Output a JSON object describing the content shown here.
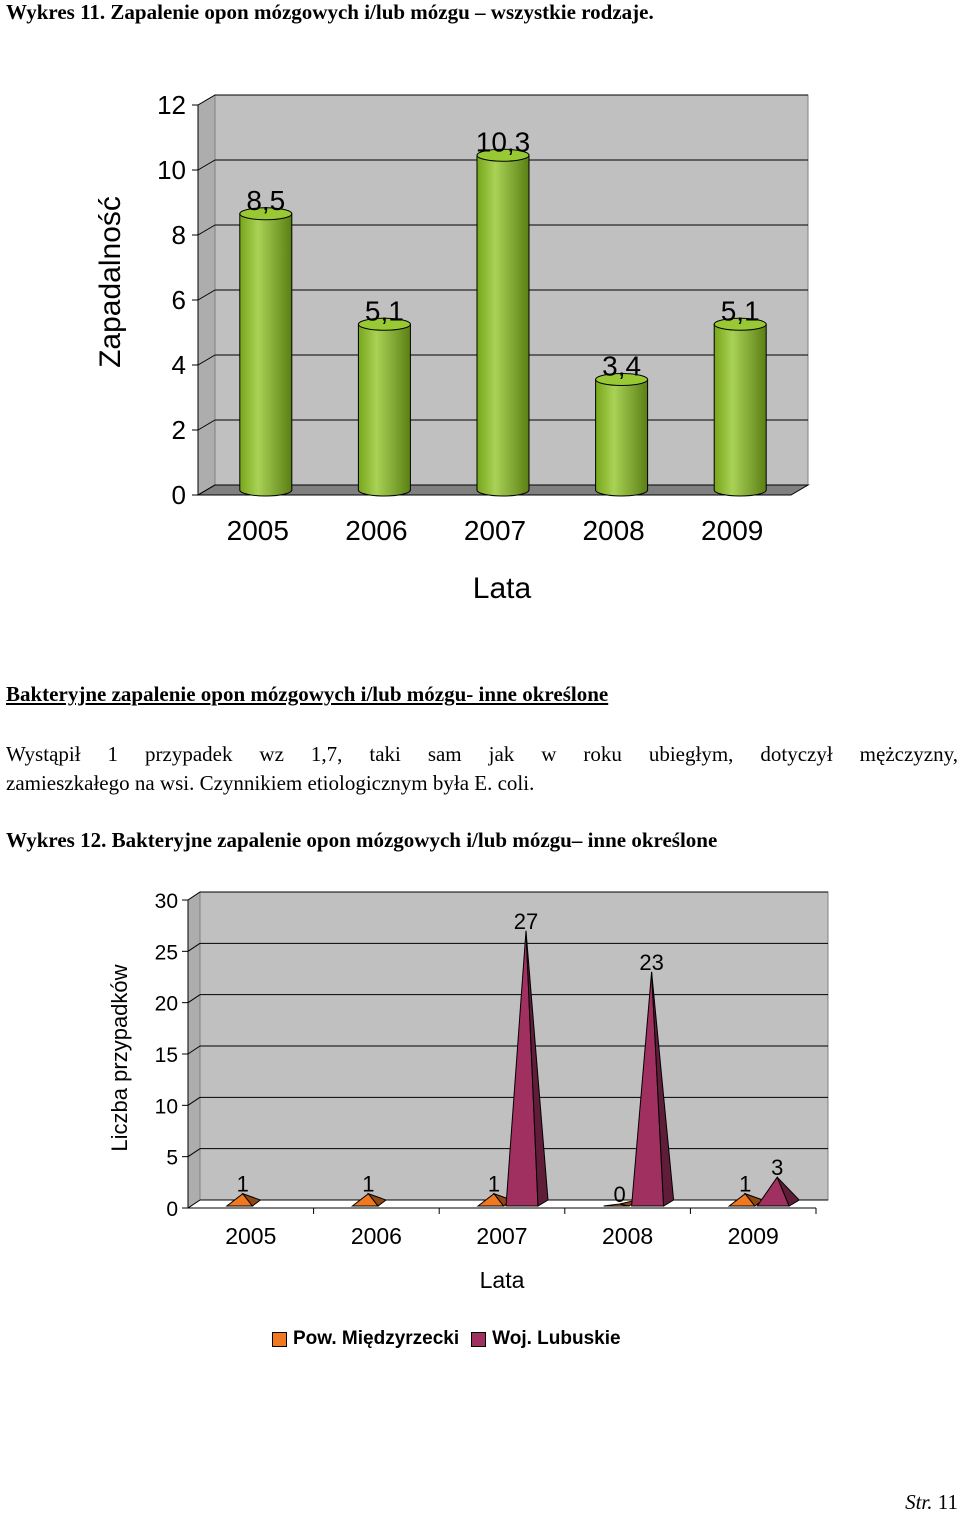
{
  "page": {
    "title1": "Wykres 11. Zapalenie opon mózgowych i/lub mózgu – wszystkie rodzaje.",
    "section_heading": "Bakteryjne zapalenie opon mózgowych i/lub mózgu- inne określone",
    "paragraph_line1": "Wystąpił 1 przypadek wz 1,7, taki sam jak w roku ubiegłym, dotyczył mężczyzny,",
    "paragraph_line2": "zamieszkałego na wsi. Czynnikiem etiologicznym była E. coli.",
    "title2": "Wykres 12. Bakteryjne zapalenie opon mózgowych i/lub mózgu– inne określone",
    "footer_label": "Str.",
    "footer_page": "11"
  },
  "chart_data": [
    {
      "type": "bar",
      "title": "",
      "xlabel": "Lata",
      "ylabel": "Zapadalność",
      "categories": [
        "2005",
        "2006",
        "2007",
        "2008",
        "2009"
      ],
      "values": [
        8.5,
        5.1,
        10.3,
        3.4,
        5.1
      ],
      "data_labels": [
        "8,5",
        "5,1",
        "10,3",
        "3,4",
        "5,1"
      ],
      "ylim": [
        0,
        12
      ],
      "yticks": [
        0,
        2,
        4,
        6,
        8,
        10,
        12
      ],
      "grid": true,
      "style": "3d-cylinder",
      "bar_color": "#8CC31E",
      "wall_color": "#C0C0C0",
      "floor_color": "#808080"
    },
    {
      "type": "area",
      "style": "3d-pyramid",
      "title": "",
      "xlabel": "Lata",
      "ylabel": "Liczba przypadków",
      "categories": [
        "2005",
        "2006",
        "2007",
        "2008",
        "2009"
      ],
      "ylim": [
        0,
        30
      ],
      "yticks": [
        0,
        5,
        10,
        15,
        20,
        25,
        30
      ],
      "grid": true,
      "legend_position": "bottom",
      "wall_color": "#C0C0C0",
      "series": [
        {
          "name": "Pow. Międzyrzecki",
          "values": [
            1,
            1,
            1,
            0,
            1
          ],
          "color": "#F07820"
        },
        {
          "name": "Woj. Lubuskie",
          "values": [
            null,
            null,
            27,
            23,
            3
          ],
          "color": "#A03060"
        }
      ]
    }
  ]
}
